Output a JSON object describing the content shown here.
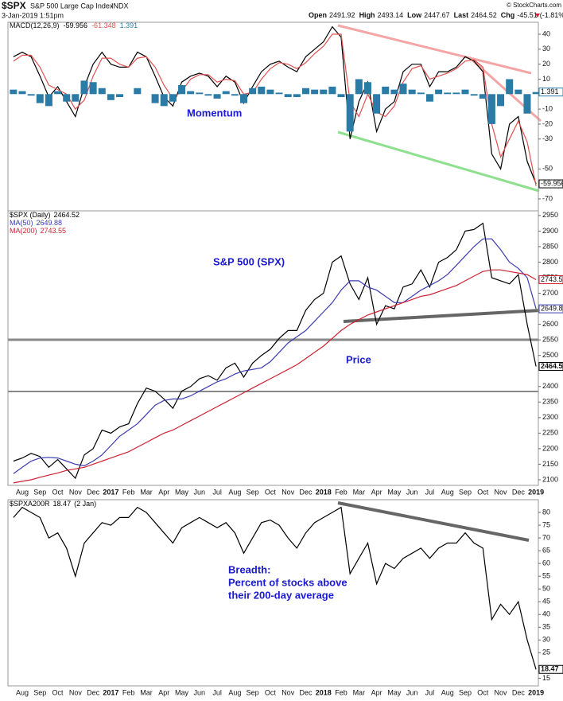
{
  "header": {
    "symbol": "$SPX",
    "name": "S&P 500 Large Cap Index",
    "exchange": "INDX",
    "credit": "© StockCharts.com",
    "date": "3-Jan-2019 1:51pm",
    "quote": [
      {
        "label": "Open",
        "value": 2491.92
      },
      {
        "label": "High",
        "value": 2493.14
      },
      {
        "label": "Low",
        "value": 2447.67
      },
      {
        "label": "Last",
        "value": 2464.52
      },
      {
        "label": "Chg",
        "value": -45.51
      }
    ],
    "change_pct": "(-1.81%)"
  },
  "chart_data": [
    {
      "type": "line",
      "label": "MACD(12,26,9)",
      "annotation": "Momentum",
      "ylim": [
        -78,
        48
      ],
      "yticks": [
        40,
        30,
        20,
        10,
        -10,
        -20,
        -30,
        -50,
        -70
      ],
      "series": [
        {
          "color": "#000000",
          "axis_box": true,
          "values": [
            25,
            28,
            25,
            12,
            -2,
            5,
            -5,
            -15,
            5,
            20,
            28,
            20,
            18,
            18,
            28,
            25,
            12,
            -2,
            -8,
            8,
            12,
            14,
            12,
            5,
            12,
            8,
            -6,
            5,
            15,
            20,
            22,
            18,
            15,
            25,
            30,
            35,
            45,
            38,
            -30,
            -5,
            8,
            -25,
            -10,
            -5,
            15,
            20,
            20,
            5,
            15,
            15,
            18,
            25,
            22,
            15,
            -40,
            -50,
            -20,
            -15,
            -45,
            -59.956
          ]
        },
        {
          "color": "#e05050",
          "values": [
            22,
            26,
            26,
            18,
            6,
            3,
            0,
            -10,
            -4,
            12,
            24,
            24,
            20,
            18,
            24,
            25,
            18,
            6,
            -3,
            2,
            10,
            13,
            13,
            8,
            10,
            9,
            0,
            1,
            10,
            17,
            21,
            20,
            17,
            21,
            27,
            32,
            40,
            40,
            -5,
            -15,
            0,
            -12,
            -15,
            -8,
            8,
            17,
            19,
            10,
            12,
            14,
            17,
            22,
            23,
            18,
            -20,
            -42,
            -30,
            -18,
            -32,
            -61.348
          ]
        },
        {
          "color": "#2a7ca6",
          "style": "histogram",
          "axis_box": true,
          "values": [
            3,
            2,
            -1,
            -6,
            -8,
            2,
            -5,
            -5,
            9,
            8,
            4,
            -4,
            -2,
            0,
            4,
            0,
            -6,
            -8,
            -5,
            6,
            2,
            1,
            -1,
            -3,
            2,
            -1,
            -6,
            4,
            5,
            3,
            1,
            -2,
            -2,
            4,
            3,
            3,
            5,
            -2,
            -25,
            10,
            8,
            -13,
            5,
            3,
            7,
            3,
            1,
            -5,
            3,
            1,
            1,
            3,
            -1,
            -3,
            -20,
            -8,
            10,
            3,
            -13,
            1.391
          ]
        }
      ]
    },
    {
      "type": "line",
      "annotation": "S&P 500 (SPX)",
      "annotation2": "Price",
      "categories": [
        null,
        "Aug",
        null,
        "Sep",
        null,
        "Oct",
        null,
        "Nov",
        null,
        "Dec",
        null,
        "2017",
        null,
        "Feb",
        null,
        "Mar",
        null,
        "Apr",
        null,
        "May",
        null,
        "Jun",
        null,
        "Jul",
        null,
        "Aug",
        null,
        "Sep",
        null,
        "Oct",
        null,
        "Nov",
        null,
        "Dec",
        null,
        "2018",
        null,
        "Feb",
        null,
        "Mar",
        null,
        "Apr",
        null,
        "May",
        null,
        "Jun",
        null,
        "Jul",
        null,
        "Aug",
        null,
        "Sep",
        null,
        "Oct",
        null,
        "Nov",
        null,
        "Dec",
        null,
        "2019"
      ],
      "ylim": [
        2082,
        2965
      ],
      "yticks": [
        2950,
        2900,
        2850,
        2800,
        2750,
        2700,
        2650,
        2600,
        2550,
        2500,
        2400,
        2350,
        2300,
        2250,
        2200,
        2150,
        2100
      ],
      "series": [
        {
          "name": "$SPX (Daily)",
          "color": "#000000",
          "axis_box": true,
          "bold": true,
          "values": [
            2160,
            2170,
            2185,
            2175,
            2140,
            2165,
            2135,
            2105,
            2180,
            2200,
            2260,
            2250,
            2270,
            2280,
            2345,
            2395,
            2385,
            2360,
            2330,
            2385,
            2400,
            2425,
            2435,
            2420,
            2460,
            2475,
            2430,
            2475,
            2500,
            2520,
            2555,
            2580,
            2580,
            2645,
            2680,
            2700,
            2800,
            2820,
            2730,
            2680,
            2750,
            2600,
            2660,
            2650,
            2720,
            2730,
            2775,
            2720,
            2800,
            2815,
            2840,
            2900,
            2905,
            2925,
            2750,
            2740,
            2730,
            2760,
            2600,
            2464.52
          ]
        },
        {
          "name": "MA(50)",
          "color": "#3b3bb0",
          "axis_box": true,
          "values": [
            2120,
            2140,
            2160,
            2170,
            2172,
            2170,
            2160,
            2150,
            2145,
            2160,
            2180,
            2210,
            2240,
            2260,
            2280,
            2310,
            2340,
            2355,
            2360,
            2360,
            2370,
            2385,
            2400,
            2415,
            2425,
            2440,
            2450,
            2455,
            2460,
            2480,
            2510,
            2540,
            2560,
            2580,
            2610,
            2640,
            2670,
            2710,
            2740,
            2740,
            2720,
            2710,
            2690,
            2670,
            2670,
            2690,
            2710,
            2725,
            2740,
            2760,
            2790,
            2820,
            2850,
            2875,
            2875,
            2840,
            2800,
            2780,
            2750,
            2649.88
          ]
        },
        {
          "name": "MA(200)",
          "color": "#cc2233",
          "axis_box": true,
          "values": [
            2090,
            2095,
            2100,
            2108,
            2115,
            2122,
            2130,
            2135,
            2140,
            2150,
            2160,
            2170,
            2180,
            2190,
            2205,
            2220,
            2235,
            2250,
            2260,
            2275,
            2290,
            2305,
            2320,
            2335,
            2350,
            2365,
            2380,
            2395,
            2410,
            2425,
            2440,
            2455,
            2470,
            2490,
            2510,
            2530,
            2555,
            2580,
            2600,
            2615,
            2630,
            2640,
            2650,
            2660,
            2670,
            2680,
            2690,
            2695,
            2705,
            2715,
            2725,
            2740,
            2755,
            2770,
            2775,
            2775,
            2770,
            2765,
            2760,
            2743.55
          ]
        }
      ]
    },
    {
      "type": "line",
      "legend_date": "(2 Jan)",
      "annotation_lines": [
        "Breadth:",
        "Percent of stocks above",
        "their 200-day average"
      ],
      "categories": [
        null,
        "Aug",
        null,
        "Sep",
        null,
        "Oct",
        null,
        "Nov",
        null,
        "Dec",
        null,
        "2017",
        null,
        "Feb",
        null,
        "Mar",
        null,
        "Apr",
        null,
        "May",
        null,
        "Jun",
        null,
        "Jul",
        null,
        "Aug",
        null,
        "Sep",
        null,
        "Oct",
        null,
        "Nov",
        null,
        "Dec",
        null,
        "2018",
        null,
        "Feb",
        null,
        "Mar",
        null,
        "Apr",
        null,
        "May",
        null,
        "Jun",
        null,
        "Jul",
        null,
        "Aug",
        null,
        "Sep",
        null,
        "Oct",
        null,
        "Nov",
        null,
        "Dec",
        null,
        "2019"
      ],
      "ylim": [
        12,
        85
      ],
      "yticks": [
        80,
        75,
        70,
        65,
        60,
        55,
        50,
        45,
        40,
        35,
        30,
        25,
        15
      ],
      "series": [
        {
          "name": "$SPXA200R",
          "color": "#000000",
          "axis_box": true,
          "bold": true,
          "values": [
            78,
            82,
            80,
            78,
            70,
            72,
            66,
            55,
            68,
            72,
            76,
            75,
            78,
            78,
            82,
            80,
            76,
            72,
            68,
            74,
            76,
            78,
            76,
            74,
            76,
            72,
            64,
            70,
            76,
            77,
            75,
            70,
            66,
            72,
            76,
            78,
            80,
            82,
            56,
            62,
            68,
            52,
            60,
            58,
            62,
            64,
            66,
            62,
            66,
            68,
            68,
            72,
            68,
            66,
            38,
            44,
            40,
            45,
            30,
            18.47
          ]
        }
      ]
    }
  ]
}
